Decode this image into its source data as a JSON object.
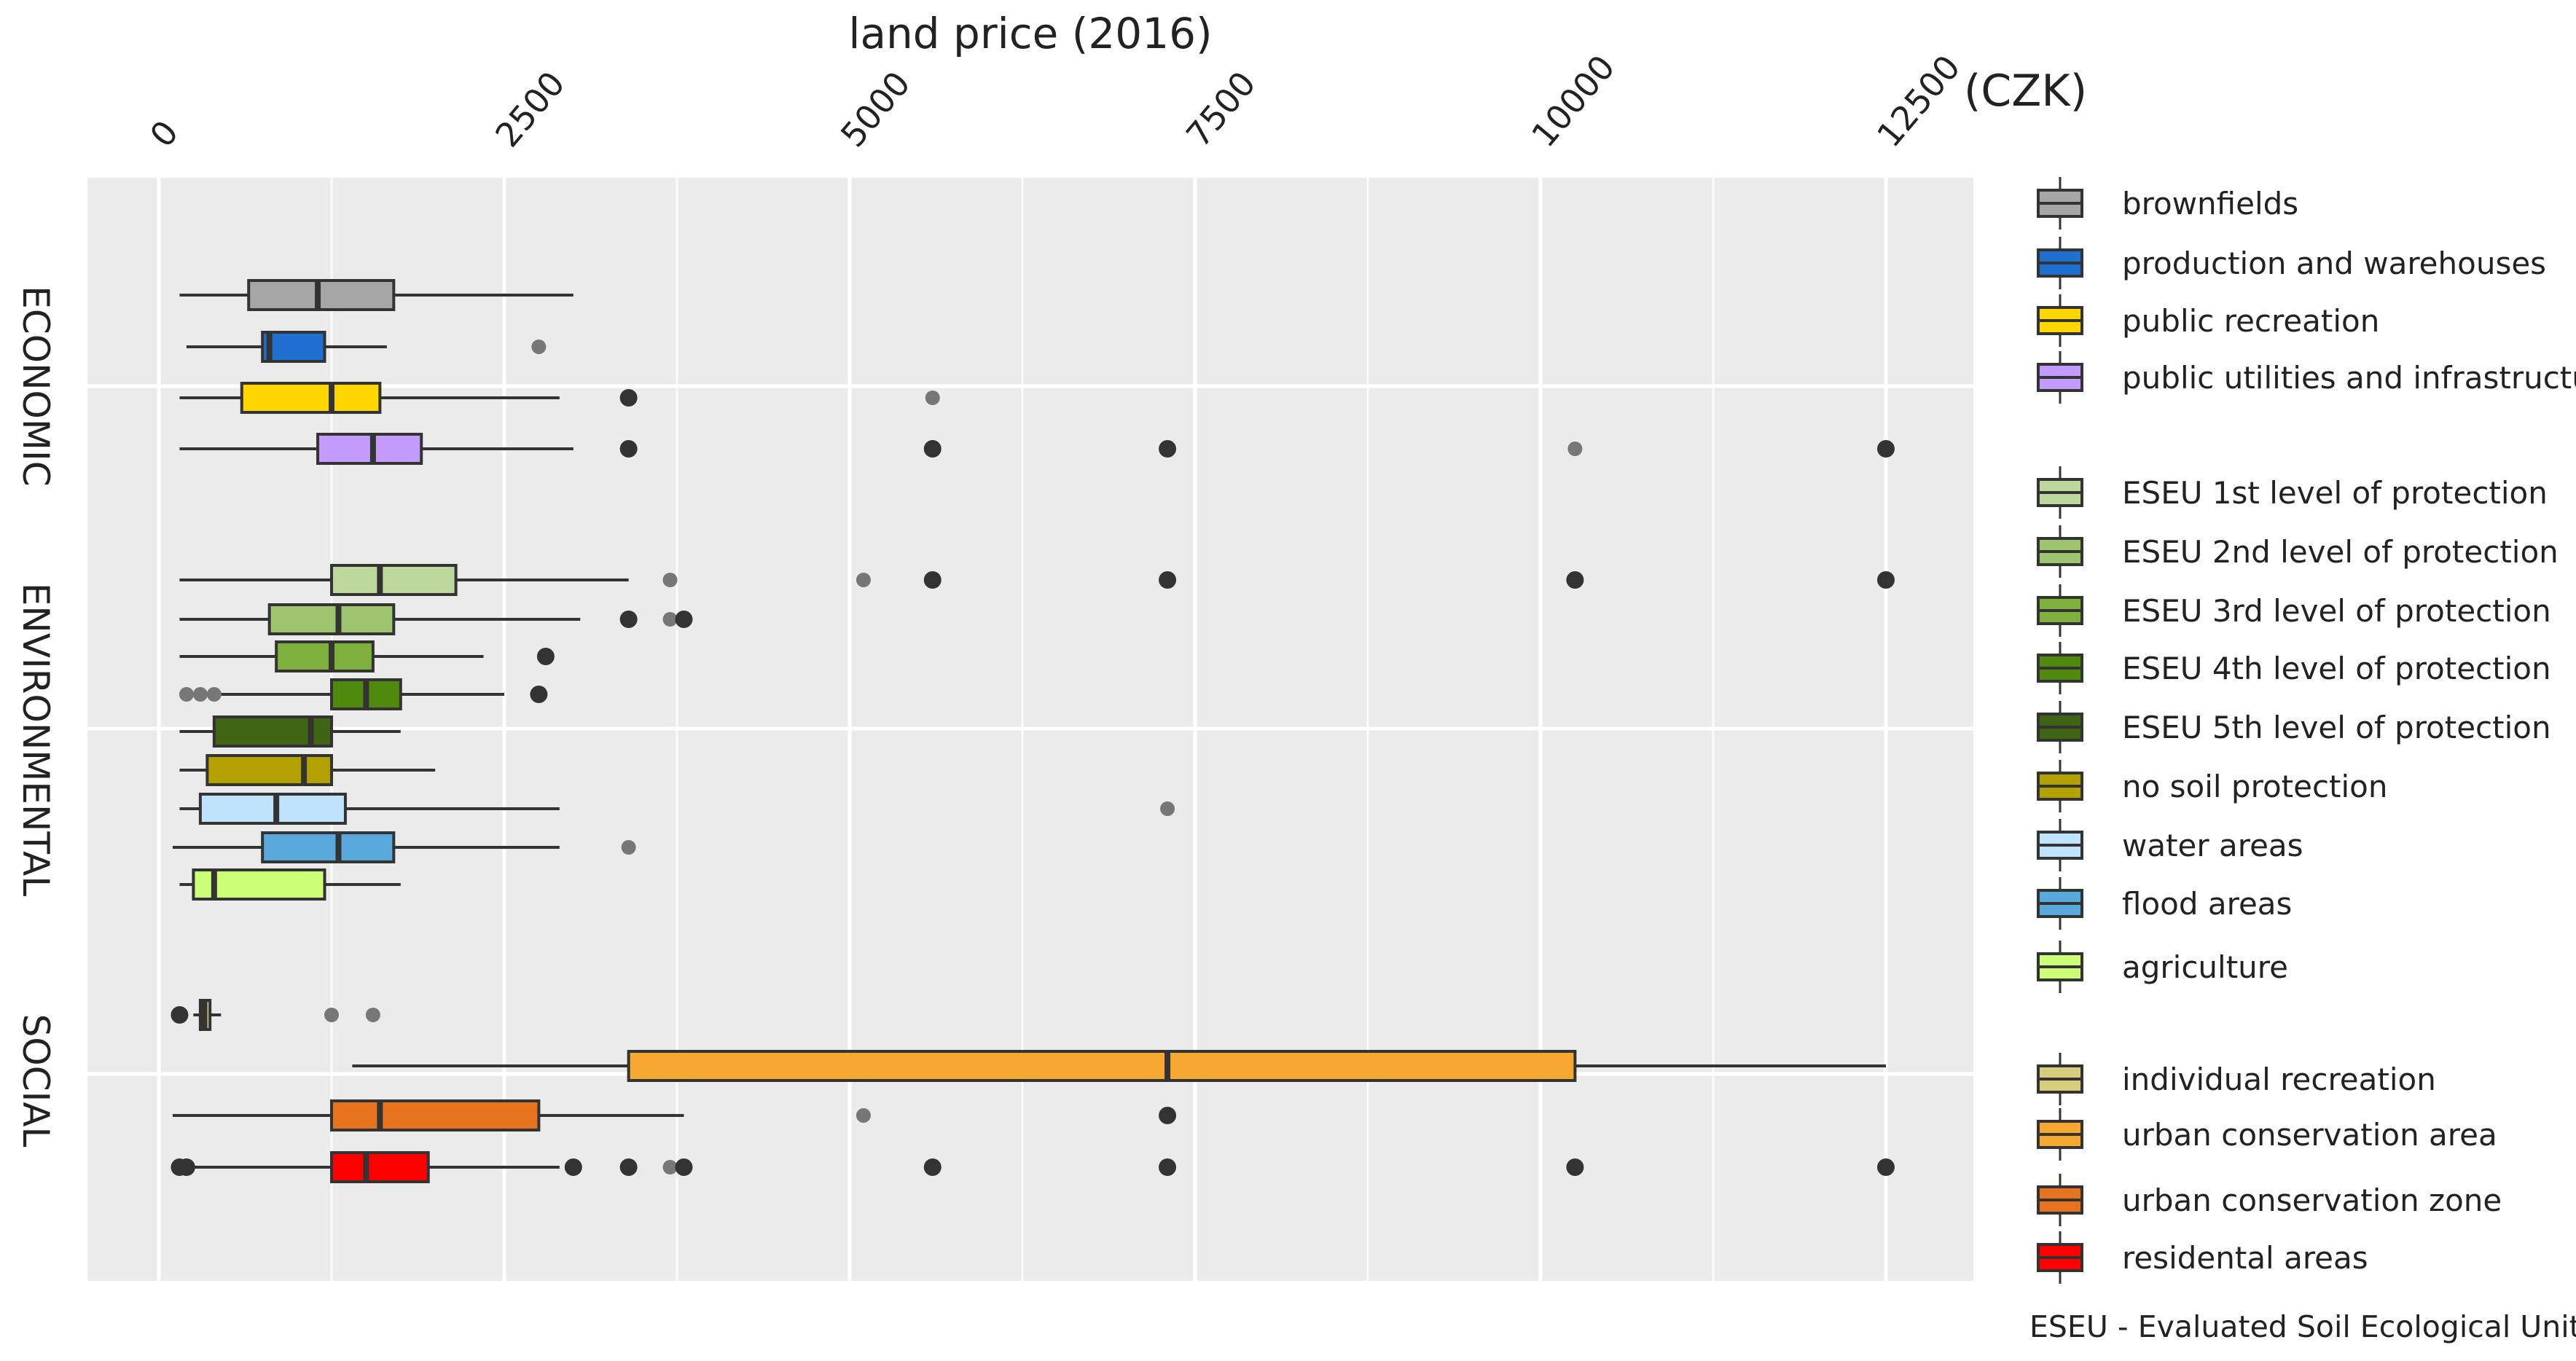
{
  "chart_data": {
    "type": "boxplot",
    "title": "land price (2016)",
    "axis_unit": "(CZK)",
    "xlim": [
      -500,
      13300
    ],
    "ticks": [
      0,
      2500,
      5000,
      7500,
      10000,
      12500
    ],
    "tick_labels": [
      "0",
      "2500",
      "5000",
      "7500",
      "10000",
      "12500"
    ],
    "orientation": "horizontal",
    "grid": true,
    "groups": [
      "ECONOMIC",
      "ENVIRONMENTAL",
      "SOCIAL"
    ],
    "footnote": "ESEU - Evaluated Soil Ecological Units",
    "series": [
      {
        "name": "brownfields",
        "group": "ECONOMIC",
        "color": "#a6a6a6",
        "whisker_low": 150,
        "q1": 650,
        "median": 1150,
        "q3": 1700,
        "whisker_high": 3000,
        "outliers": [],
        "faint_outliers": []
      },
      {
        "name": "production and warehouses",
        "group": "ECONOMIC",
        "color": "#1f6fd1",
        "whisker_low": 200,
        "q1": 750,
        "median": 800,
        "q3": 1200,
        "whisker_high": 1650,
        "outliers": [],
        "faint_outliers": [
          2750
        ]
      },
      {
        "name": "public recreation",
        "group": "ECONOMIC",
        "color": "#ffd700",
        "whisker_low": 150,
        "q1": 600,
        "median": 1250,
        "q3": 1600,
        "whisker_high": 2900,
        "outliers": [
          3400
        ],
        "faint_outliers": [
          5600
        ]
      },
      {
        "name": "public utilities and infrastructure",
        "group": "ECONOMIC",
        "color": "#c39bff",
        "whisker_low": 150,
        "q1": 1150,
        "median": 1550,
        "q3": 1900,
        "whisker_high": 3000,
        "outliers": [
          3400,
          5600,
          7300,
          12500
        ],
        "faint_outliers": [
          10250
        ]
      },
      {
        "name": "ESEU 1st level of protection",
        "group": "ENVIRONMENTAL",
        "color": "#bcd89c",
        "whisker_low": 150,
        "q1": 1250,
        "median": 1600,
        "q3": 2150,
        "whisker_high": 3400,
        "outliers": [
          5600,
          7300,
          10250,
          12500
        ],
        "faint_outliers": [
          3700,
          5100
        ]
      },
      {
        "name": "ESEU 2nd level of protection",
        "group": "ENVIRONMENTAL",
        "color": "#9dc46f",
        "whisker_low": 150,
        "q1": 800,
        "median": 1300,
        "q3": 1700,
        "whisker_high": 3050,
        "outliers": [
          3400,
          3800
        ],
        "faint_outliers": [
          3700
        ]
      },
      {
        "name": "ESEU 3rd level of protection",
        "group": "ENVIRONMENTAL",
        "color": "#7fb03e",
        "whisker_low": 150,
        "q1": 850,
        "median": 1250,
        "q3": 1550,
        "whisker_high": 2350,
        "outliers": [
          2800
        ],
        "faint_outliers": []
      },
      {
        "name": "ESEU 4th level of protection",
        "group": "ENVIRONMENTAL",
        "color": "#4f8a0f",
        "whisker_low": 150,
        "q1": 1250,
        "median": 1500,
        "q3": 1750,
        "whisker_high": 2500,
        "outliers": [
          2750
        ],
        "faint_outliers": [
          200,
          300,
          400
        ]
      },
      {
        "name": "ESEU 5th level of protection",
        "group": "ENVIRONMENTAL",
        "color": "#3e6414",
        "whisker_low": 150,
        "q1": 400,
        "median": 1100,
        "q3": 1250,
        "whisker_high": 1750,
        "outliers": [],
        "faint_outliers": []
      },
      {
        "name": "no soil protection",
        "group": "ENVIRONMENTAL",
        "color": "#b3a100",
        "whisker_low": 150,
        "q1": 350,
        "median": 1050,
        "q3": 1250,
        "whisker_high": 2000,
        "outliers": [],
        "faint_outliers": []
      },
      {
        "name": "water areas",
        "group": "ENVIRONMENTAL",
        "color": "#bfe3fb",
        "whisker_low": 150,
        "q1": 300,
        "median": 850,
        "q3": 1350,
        "whisker_high": 2900,
        "outliers": [],
        "faint_outliers": [
          7300
        ]
      },
      {
        "name": "flood areas",
        "group": "ENVIRONMENTAL",
        "color": "#5aa9dc",
        "whisker_low": 100,
        "q1": 750,
        "median": 1300,
        "q3": 1700,
        "whisker_high": 2900,
        "outliers": [],
        "faint_outliers": [
          3400
        ]
      },
      {
        "name": "agriculture",
        "group": "ENVIRONMENTAL",
        "color": "#ccff77",
        "whisker_low": 150,
        "q1": 250,
        "median": 400,
        "q3": 1200,
        "whisker_high": 1750,
        "outliers": [],
        "faint_outliers": []
      },
      {
        "name": "individual recreation",
        "group": "SOCIAL",
        "color": "#d6ce7c",
        "whisker_low": 250,
        "q1": 300,
        "median": 330,
        "q3": 370,
        "whisker_high": 450,
        "outliers": [
          150
        ],
        "faint_outliers": [
          1250,
          1550
        ]
      },
      {
        "name": "urban conservation area",
        "group": "SOCIAL",
        "color": "#f7a830",
        "whisker_low": 1400,
        "q1": 3400,
        "median": 7300,
        "q3": 10250,
        "whisker_high": 12500,
        "outliers": [],
        "faint_outliers": []
      },
      {
        "name": "urban conservation zone",
        "group": "SOCIAL",
        "color": "#e8731e",
        "whisker_low": 100,
        "q1": 1250,
        "median": 1600,
        "q3": 2750,
        "whisker_high": 3800,
        "outliers": [
          7300
        ],
        "faint_outliers": [
          5100
        ]
      },
      {
        "name": "residental areas",
        "group": "SOCIAL",
        "color": "#ff0000",
        "whisker_low": 150,
        "q1": 1250,
        "median": 1500,
        "q3": 1950,
        "whisker_high": 2900,
        "outliers": [
          150,
          200,
          3000,
          3400,
          3800,
          5600,
          7300,
          10250,
          12500
        ],
        "faint_outliers": [
          3700
        ]
      }
    ]
  }
}
